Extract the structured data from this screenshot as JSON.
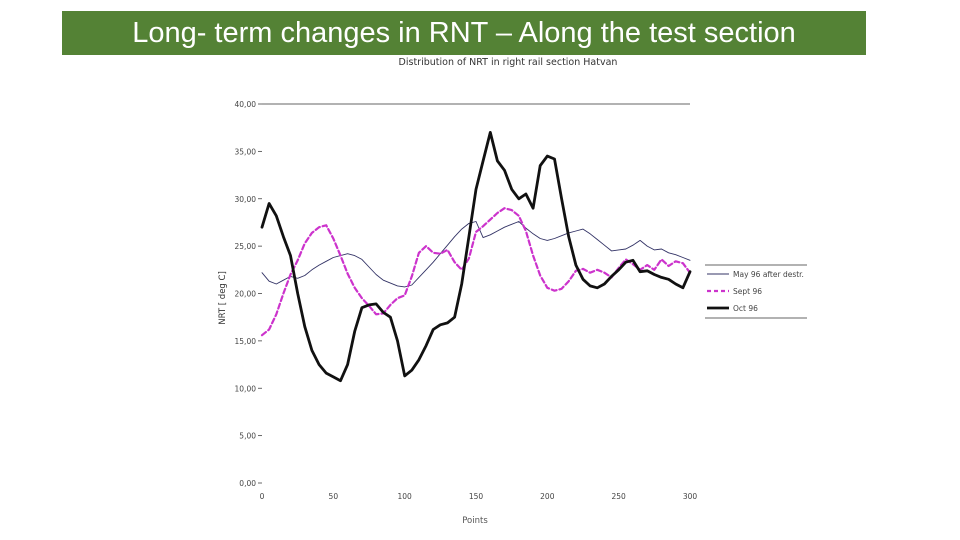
{
  "slide": {
    "title": "Long- term changes in RNT – Along the test section",
    "title_bg": "#548235",
    "title_color": "#ffffff"
  },
  "chart_data": {
    "type": "line",
    "title": "Distribution of NRT in right rail  section Hatvan",
    "xlabel": "Points",
    "ylabel": "NRT [ deg C]",
    "xlim": [
      0,
      300
    ],
    "ylim": [
      0,
      40
    ],
    "x_ticks": [
      "0",
      "50",
      "100",
      "150",
      "200",
      "250",
      "300"
    ],
    "y_ticks": [
      "0,00",
      "5,00",
      "10,00",
      "15,00",
      "20,00",
      "25,00",
      "30,00",
      "35,00",
      "40,00"
    ],
    "grid": false,
    "legend_position": "right",
    "series": [
      {
        "name": "May 96 after destr.",
        "color": "#333366",
        "style": "thin-solid",
        "x": [
          0,
          5,
          10,
          15,
          20,
          25,
          30,
          35,
          40,
          45,
          50,
          55,
          60,
          65,
          70,
          75,
          80,
          85,
          90,
          95,
          100,
          105,
          110,
          115,
          120,
          125,
          130,
          135,
          140,
          145,
          150,
          155,
          160,
          165,
          170,
          175,
          180,
          185,
          190,
          195,
          200,
          205,
          210,
          215,
          220,
          225,
          230,
          235,
          240,
          245,
          250,
          255,
          260,
          265,
          270,
          275,
          280,
          285,
          290,
          295,
          300
        ],
        "values": [
          22.2,
          21.3,
          21.0,
          21.4,
          21.8,
          21.6,
          21.9,
          22.5,
          23.0,
          23.4,
          23.8,
          24.0,
          24.2,
          24.0,
          23.6,
          22.8,
          22.0,
          21.4,
          21.1,
          20.8,
          20.7,
          20.9,
          21.7,
          22.5,
          23.3,
          24.2,
          25.1,
          26.0,
          26.8,
          27.4,
          27.6,
          25.9,
          26.2,
          26.6,
          27.0,
          27.3,
          27.6,
          26.9,
          26.3,
          25.8,
          25.6,
          25.8,
          26.1,
          26.4,
          26.6,
          26.8,
          26.3,
          25.7,
          25.1,
          24.5,
          24.6,
          24.7,
          25.1,
          25.6,
          25.0,
          24.6,
          24.7,
          24.3,
          24.1,
          23.8,
          23.5
        ]
      },
      {
        "name": "Sept 96",
        "color": "#cc33cc",
        "style": "dashed",
        "x": [
          0,
          5,
          10,
          15,
          20,
          25,
          30,
          35,
          40,
          45,
          50,
          55,
          60,
          65,
          70,
          75,
          80,
          85,
          90,
          95,
          100,
          105,
          110,
          115,
          120,
          125,
          130,
          135,
          140,
          145,
          150,
          155,
          160,
          165,
          170,
          175,
          180,
          185,
          190,
          195,
          200,
          205,
          210,
          215,
          220,
          225,
          230,
          235,
          240,
          245,
          250,
          255,
          260,
          265,
          270,
          275,
          280,
          285,
          290,
          295,
          300
        ],
        "values": [
          15.6,
          16.2,
          17.8,
          20.0,
          22.0,
          23.5,
          25.3,
          26.4,
          27.0,
          27.2,
          25.8,
          24.0,
          22.1,
          20.6,
          19.5,
          18.7,
          17.8,
          17.9,
          18.8,
          19.5,
          19.8,
          21.8,
          24.3,
          25.0,
          24.3,
          24.2,
          24.6,
          23.3,
          22.5,
          23.7,
          26.5,
          27.1,
          27.8,
          28.5,
          29.0,
          28.8,
          28.2,
          26.6,
          24.0,
          21.9,
          20.6,
          20.3,
          20.5,
          21.3,
          22.4,
          22.6,
          22.2,
          22.5,
          22.2,
          21.7,
          22.7,
          23.6,
          23.1,
          22.5,
          23.0,
          22.5,
          23.6,
          22.9,
          23.4,
          23.2,
          22.2
        ]
      },
      {
        "name": "Oct 96",
        "color": "#111111",
        "style": "thick-solid",
        "x": [
          0,
          5,
          10,
          15,
          20,
          25,
          30,
          35,
          40,
          45,
          50,
          55,
          60,
          65,
          70,
          75,
          80,
          85,
          90,
          95,
          100,
          105,
          110,
          115,
          120,
          125,
          130,
          135,
          140,
          145,
          150,
          155,
          160,
          165,
          170,
          175,
          180,
          185,
          190,
          195,
          200,
          205,
          210,
          215,
          220,
          225,
          230,
          235,
          240,
          245,
          250,
          255,
          260,
          265,
          270,
          275,
          280,
          285,
          290,
          295,
          300
        ],
        "values": [
          27.0,
          29.5,
          28.2,
          26.0,
          24.0,
          20.0,
          16.5,
          14.0,
          12.5,
          11.6,
          11.2,
          10.8,
          12.5,
          16.0,
          18.5,
          18.8,
          18.9,
          18.0,
          17.5,
          15.0,
          11.3,
          11.9,
          13.0,
          14.5,
          16.2,
          16.7,
          16.9,
          17.5,
          21.0,
          26.0,
          31.0,
          34.0,
          37.0,
          34.0,
          33.0,
          31.0,
          30.0,
          30.5,
          29.0,
          33.5,
          34.5,
          34.2,
          30.0,
          26.0,
          23.0,
          21.5,
          20.8,
          20.6,
          21.0,
          21.8,
          22.5,
          23.3,
          23.5,
          22.3,
          22.4,
          22.0,
          21.7,
          21.5,
          21.0,
          20.6,
          22.3
        ]
      }
    ]
  }
}
